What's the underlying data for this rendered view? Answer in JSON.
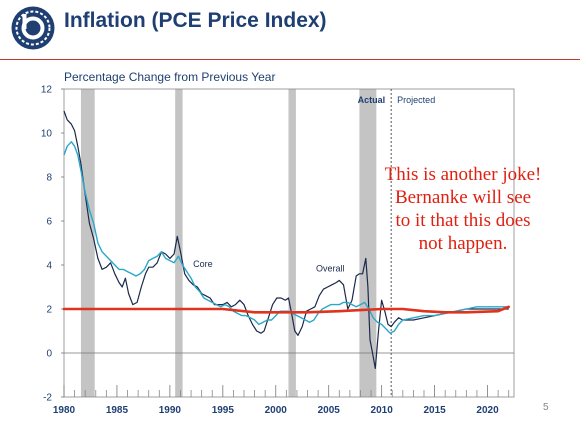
{
  "header": {
    "title": "Inflation (PCE Price Index)"
  },
  "annotation": {
    "lines": [
      "This is another joke!",
      "Bernanke will see",
      "to it that this does",
      "not happen."
    ]
  },
  "footer": {
    "page_number": "5"
  },
  "colors": {
    "accent": "#1f3f72",
    "overall": "#1b2a4a",
    "core": "#2aa7c9",
    "recession": "#c4c4c4",
    "overlay": "#e0331e",
    "annotation": "#e02010",
    "title_rule": "#c0392b"
  },
  "icons": {
    "logo": "circular-emblem-logo-icon"
  },
  "chart_data": {
    "type": "line",
    "title": "Percentage Change from Previous Year",
    "xlabel": "",
    "ylabel": "",
    "xlim": [
      1980,
      2022.5
    ],
    "ylim": [
      -2,
      12
    ],
    "x_ticks": [
      1980,
      1985,
      1990,
      1995,
      2000,
      2005,
      2010,
      2015,
      2020
    ],
    "y_ticks": [
      -2,
      0,
      2,
      4,
      6,
      8,
      10,
      12
    ],
    "recessions": [
      [
        1981.6,
        1982.9
      ],
      [
        1990.5,
        1991.2
      ],
      [
        2001.2,
        2001.9
      ],
      [
        2007.9,
        2009.5
      ]
    ],
    "split_year": 2010.9,
    "region_labels": [
      "Actual",
      "Projected"
    ],
    "series_labels": [
      {
        "text": "Core",
        "x": 1992.2,
        "y": 3.9
      },
      {
        "text": "Overall",
        "x": 2003.8,
        "y": 3.7
      }
    ],
    "series": [
      {
        "name": "Overall",
        "style": "dark",
        "points": [
          [
            1980,
            11.0
          ],
          [
            1980.3,
            10.6
          ],
          [
            1980.7,
            10.4
          ],
          [
            1981.0,
            10.1
          ],
          [
            1981.3,
            9.4
          ],
          [
            1981.6,
            8.6
          ],
          [
            1982.0,
            7.2
          ],
          [
            1982.4,
            5.9
          ],
          [
            1982.8,
            5.2
          ],
          [
            1983.2,
            4.3
          ],
          [
            1983.6,
            3.8
          ],
          [
            1984.0,
            3.9
          ],
          [
            1984.4,
            4.1
          ],
          [
            1984.8,
            3.6
          ],
          [
            1985.2,
            3.2
          ],
          [
            1985.5,
            3.0
          ],
          [
            1985.8,
            3.4
          ],
          [
            1986.1,
            2.7
          ],
          [
            1986.5,
            2.2
          ],
          [
            1986.9,
            2.3
          ],
          [
            1987.3,
            3.0
          ],
          [
            1987.7,
            3.6
          ],
          [
            1988.0,
            3.9
          ],
          [
            1988.4,
            3.9
          ],
          [
            1988.8,
            4.1
          ],
          [
            1989.2,
            4.6
          ],
          [
            1989.6,
            4.5
          ],
          [
            1990.0,
            4.3
          ],
          [
            1990.4,
            4.5
          ],
          [
            1990.7,
            5.3
          ],
          [
            1991.0,
            4.6
          ],
          [
            1991.4,
            3.6
          ],
          [
            1991.8,
            3.3
          ],
          [
            1992.2,
            3.1
          ],
          [
            1992.6,
            3.0
          ],
          [
            1993.0,
            2.7
          ],
          [
            1993.4,
            2.6
          ],
          [
            1993.8,
            2.5
          ],
          [
            1994.2,
            2.2
          ],
          [
            1994.6,
            2.2
          ],
          [
            1995.0,
            2.2
          ],
          [
            1995.4,
            2.3
          ],
          [
            1995.8,
            2.1
          ],
          [
            1996.2,
            2.2
          ],
          [
            1996.6,
            2.4
          ],
          [
            1997.0,
            2.2
          ],
          [
            1997.4,
            1.7
          ],
          [
            1997.8,
            1.3
          ],
          [
            1998.2,
            1.0
          ],
          [
            1998.6,
            0.9
          ],
          [
            1998.9,
            1.0
          ],
          [
            1999.3,
            1.6
          ],
          [
            1999.7,
            2.2
          ],
          [
            2000.1,
            2.5
          ],
          [
            2000.5,
            2.5
          ],
          [
            2000.9,
            2.4
          ],
          [
            2001.2,
            2.5
          ],
          [
            2001.5,
            1.8
          ],
          [
            2001.8,
            1.0
          ],
          [
            2002.1,
            0.8
          ],
          [
            2002.5,
            1.2
          ],
          [
            2002.9,
            1.9
          ],
          [
            2003.3,
            2.0
          ],
          [
            2003.7,
            2.1
          ],
          [
            2004.1,
            2.6
          ],
          [
            2004.5,
            2.9
          ],
          [
            2004.9,
            3.0
          ],
          [
            2005.3,
            3.1
          ],
          [
            2005.7,
            3.2
          ],
          [
            2006.0,
            3.3
          ],
          [
            2006.4,
            3.1
          ],
          [
            2006.8,
            2.0
          ],
          [
            2007.2,
            2.4
          ],
          [
            2007.6,
            3.5
          ],
          [
            2007.9,
            3.6
          ],
          [
            2008.2,
            3.6
          ],
          [
            2008.5,
            4.3
          ],
          [
            2008.7,
            3.0
          ],
          [
            2008.9,
            0.6
          ],
          [
            2009.1,
            0.1
          ],
          [
            2009.4,
            -0.7
          ],
          [
            2009.7,
            1.0
          ],
          [
            2010.0,
            2.4
          ],
          [
            2010.3,
            1.9
          ],
          [
            2010.6,
            1.3
          ],
          [
            2010.9,
            1.2
          ],
          [
            2011.2,
            1.4
          ],
          [
            2011.6,
            1.6
          ],
          [
            2012.0,
            1.5
          ],
          [
            2013.0,
            1.5
          ],
          [
            2014.0,
            1.6
          ],
          [
            2015.0,
            1.7
          ],
          [
            2016.0,
            1.8
          ],
          [
            2017.0,
            1.9
          ],
          [
            2018.0,
            2.0
          ],
          [
            2019.0,
            2.0
          ],
          [
            2020.0,
            2.0
          ],
          [
            2021.0,
            2.0
          ],
          [
            2022.0,
            2.0
          ]
        ]
      },
      {
        "name": "Core",
        "style": "light",
        "points": [
          [
            1980,
            9.0
          ],
          [
            1980.3,
            9.4
          ],
          [
            1980.7,
            9.6
          ],
          [
            1981.0,
            9.4
          ],
          [
            1981.3,
            9.0
          ],
          [
            1981.6,
            8.3
          ],
          [
            1982.0,
            7.3
          ],
          [
            1982.4,
            6.5
          ],
          [
            1982.8,
            5.9
          ],
          [
            1983.2,
            5.0
          ],
          [
            1983.6,
            4.6
          ],
          [
            1984.0,
            4.4
          ],
          [
            1984.4,
            4.2
          ],
          [
            1984.8,
            4.0
          ],
          [
            1985.2,
            3.8
          ],
          [
            1985.6,
            3.8
          ],
          [
            1986.0,
            3.7
          ],
          [
            1986.4,
            3.6
          ],
          [
            1986.8,
            3.5
          ],
          [
            1987.2,
            3.6
          ],
          [
            1987.6,
            3.8
          ],
          [
            1988.0,
            4.2
          ],
          [
            1988.4,
            4.3
          ],
          [
            1988.8,
            4.4
          ],
          [
            1989.2,
            4.6
          ],
          [
            1989.6,
            4.3
          ],
          [
            1990.0,
            4.2
          ],
          [
            1990.4,
            4.1
          ],
          [
            1990.8,
            4.4
          ],
          [
            1991.2,
            4.0
          ],
          [
            1991.6,
            3.7
          ],
          [
            1992.0,
            3.4
          ],
          [
            1992.4,
            3.0
          ],
          [
            1992.8,
            2.8
          ],
          [
            1993.2,
            2.5
          ],
          [
            1993.6,
            2.4
          ],
          [
            1994.0,
            2.3
          ],
          [
            1994.4,
            2.2
          ],
          [
            1994.8,
            2.1
          ],
          [
            1995.2,
            2.2
          ],
          [
            1995.6,
            2.1
          ],
          [
            1996.0,
            1.9
          ],
          [
            1996.4,
            1.8
          ],
          [
            1996.8,
            1.7
          ],
          [
            1997.2,
            1.7
          ],
          [
            1997.6,
            1.6
          ],
          [
            1998.0,
            1.5
          ],
          [
            1998.4,
            1.3
          ],
          [
            1998.8,
            1.4
          ],
          [
            1999.2,
            1.5
          ],
          [
            1999.6,
            1.5
          ],
          [
            2000.0,
            1.7
          ],
          [
            2000.4,
            1.9
          ],
          [
            2000.8,
            1.9
          ],
          [
            2001.2,
            1.9
          ],
          [
            2001.6,
            1.8
          ],
          [
            2002.0,
            1.7
          ],
          [
            2002.4,
            1.6
          ],
          [
            2002.8,
            1.5
          ],
          [
            2003.2,
            1.4
          ],
          [
            2003.6,
            1.5
          ],
          [
            2004.0,
            1.8
          ],
          [
            2004.4,
            2.0
          ],
          [
            2004.8,
            2.1
          ],
          [
            2005.2,
            2.2
          ],
          [
            2005.6,
            2.2
          ],
          [
            2006.0,
            2.2
          ],
          [
            2006.4,
            2.3
          ],
          [
            2006.8,
            2.3
          ],
          [
            2007.2,
            2.2
          ],
          [
            2007.6,
            2.1
          ],
          [
            2008.0,
            2.2
          ],
          [
            2008.4,
            2.3
          ],
          [
            2008.8,
            2.0
          ],
          [
            2009.2,
            1.6
          ],
          [
            2009.6,
            1.4
          ],
          [
            2010.0,
            1.3
          ],
          [
            2010.4,
            1.1
          ],
          [
            2010.8,
            0.9
          ],
          [
            2011.2,
            1.0
          ],
          [
            2011.6,
            1.3
          ],
          [
            2012.0,
            1.5
          ],
          [
            2013.0,
            1.6
          ],
          [
            2014.0,
            1.7
          ],
          [
            2015.0,
            1.7
          ],
          [
            2016.0,
            1.8
          ],
          [
            2017.0,
            1.9
          ],
          [
            2018.0,
            2.0
          ],
          [
            2019.0,
            2.1
          ],
          [
            2020.0,
            2.1
          ],
          [
            2021.0,
            2.1
          ],
          [
            2022.0,
            2.1
          ]
        ]
      }
    ],
    "overlay_line": {
      "style": "hand-drawn",
      "points": [
        [
          1980,
          2.0
        ],
        [
          1985,
          2.0
        ],
        [
          1990,
          2.0
        ],
        [
          1995,
          2.0
        ],
        [
          1998,
          1.85
        ],
        [
          2003,
          1.85
        ],
        [
          2006,
          1.9
        ],
        [
          2008,
          1.95
        ],
        [
          2010,
          2.0
        ],
        [
          2012,
          2.0
        ],
        [
          2014,
          1.9
        ],
        [
          2016,
          1.85
        ],
        [
          2018,
          1.85
        ],
        [
          2021,
          1.9
        ],
        [
          2022,
          2.1
        ]
      ]
    }
  }
}
